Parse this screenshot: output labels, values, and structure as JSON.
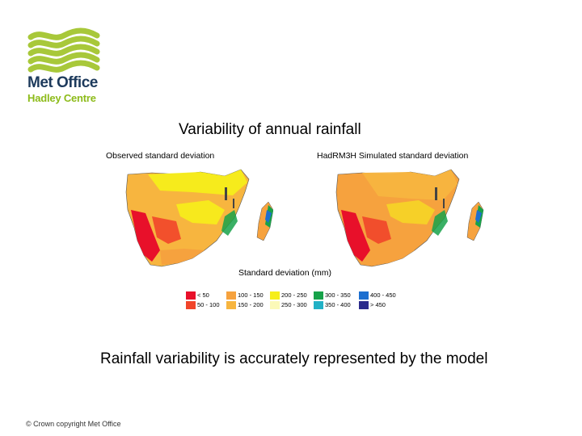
{
  "brand": {
    "name": "Met Office",
    "subtitle": "Hadley Centre",
    "wave_color": "#a8c83a"
  },
  "figure": {
    "title": "Variability of annual rainfall",
    "maps": [
      {
        "label": "Observed standard deviation"
      },
      {
        "label": "HadRM3H Simulated standard deviation"
      }
    ],
    "legend_title": "Standard deviation (mm)",
    "legend": [
      {
        "label": "< 50",
        "color": "#e8102a"
      },
      {
        "label": "50 - 100",
        "color": "#f1452a"
      },
      {
        "label": "100 - 150",
        "color": "#f6a23e"
      },
      {
        "label": "150 - 200",
        "color": "#f7b53f"
      },
      {
        "label": "200 - 250",
        "color": "#f6ee1a"
      },
      {
        "label": "250 - 300",
        "color": "#fbf9b8"
      },
      {
        "label": "300 - 350",
        "color": "#17a24a"
      },
      {
        "label": "350 - 400",
        "color": "#22b1c6"
      },
      {
        "label": "400 - 450",
        "color": "#1c6fd0"
      },
      {
        "label": "> 450",
        "color": "#2b2b8c"
      }
    ]
  },
  "caption": "Rainfall variability is accurately represented by the model",
  "footer": "© Crown copyright Met Office"
}
